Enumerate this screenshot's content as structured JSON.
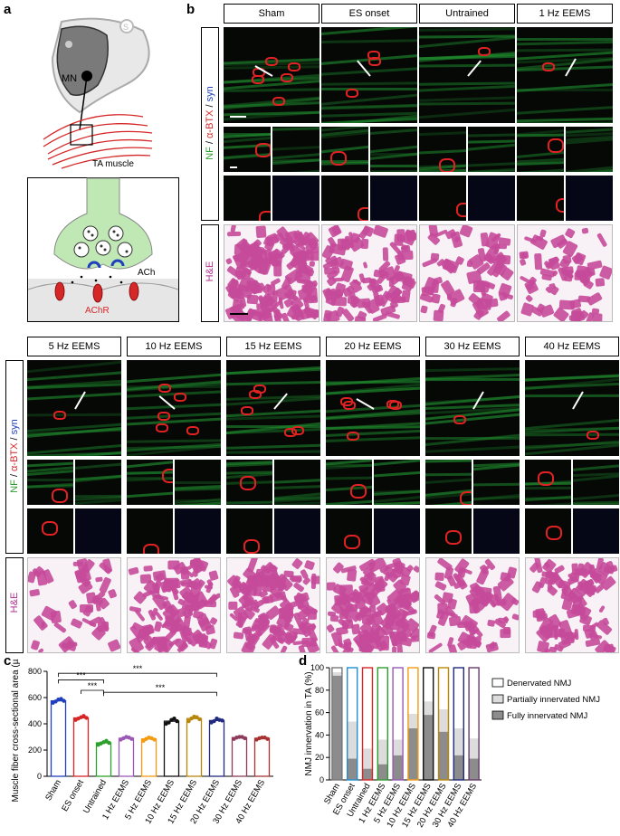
{
  "panels": {
    "a": "a",
    "b": "b",
    "c": "c",
    "d": "d"
  },
  "schematic": {
    "mn": "MN",
    "ta": "TA muscle",
    "ach": "ACh",
    "achr": "AChR",
    "s": "S"
  },
  "top_headers": [
    "Sham",
    "ES onset",
    "Untrained",
    "1 Hz EEMS"
  ],
  "bottom_headers": [
    "5 Hz EEMS",
    "10 Hz EEMS",
    "15 Hz EEMS",
    "20 Hz EEMS",
    "30 Hz EEMS",
    "40 Hz EEMS"
  ],
  "row_labels": {
    "nf": "NF",
    "sep1": " / ",
    "btx": "α-BTX",
    "sep2": " / ",
    "syn": "syn",
    "he": "H&E"
  },
  "colors": {
    "nf": "#2ca02c",
    "btx": "#d62728",
    "syn": "#1f3fbf",
    "he": "#b0308f"
  },
  "chart_data": [
    {
      "type": "scatter",
      "panel": "c",
      "ylabel": "Muscle fiber cross-sectional area (µm²)",
      "ylim": [
        0,
        800
      ],
      "yticks": [
        0,
        200,
        400,
        600,
        800
      ],
      "categories": [
        "Sham",
        "ES onset",
        "Untrained",
        "1 Hz EEMS",
        "5 Hz EEMS",
        "10 Hz EEMS",
        "15 Hz EEMS",
        "20 Hz EEMS",
        "30 Hz EEMS",
        "40 Hz EEMS"
      ],
      "means": [
        575,
        445,
        255,
        290,
        285,
        420,
        440,
        425,
        295,
        290
      ],
      "colors": [
        "#1f3fbf",
        "#d62728",
        "#2ca02c",
        "#9b59b6",
        "#f39c12",
        "#111111",
        "#b8860b",
        "#1f2a80",
        "#8e3a5a",
        "#a83232"
      ],
      "points": [
        [
          560,
          570,
          585,
          590,
          575
        ],
        [
          430,
          440,
          450,
          460,
          445
        ],
        [
          240,
          250,
          260,
          270,
          255
        ],
        [
          280,
          290,
          300,
          295,
          285
        ],
        [
          270,
          285,
          295,
          290,
          280
        ],
        [
          400,
          410,
          430,
          440,
          420
        ],
        [
          420,
          440,
          455,
          450,
          435
        ],
        [
          410,
          420,
          440,
          430,
          425
        ],
        [
          285,
          295,
          300,
          300,
          290
        ],
        [
          280,
          290,
          295,
          295,
          285
        ]
      ],
      "significance": [
        {
          "from": 0,
          "to": 2,
          "label": "***"
        },
        {
          "from": 1,
          "to": 2,
          "label": "***"
        },
        {
          "from": 0,
          "to": 7,
          "label": "***"
        },
        {
          "from": 2,
          "to": 7,
          "label": "***"
        }
      ]
    },
    {
      "type": "bar",
      "panel": "d",
      "stacked": true,
      "ylabel": "NMJ innervation in TA (%)",
      "ylim": [
        0,
        100
      ],
      "yticks": [
        0,
        20,
        40,
        60,
        80,
        100
      ],
      "categories": [
        "Sham",
        "ES onset",
        "Untrained",
        "1 Hz EEMS",
        "5 Hz EEMS",
        "10 Hz EEMS",
        "15 Hz EEMS",
        "20 Hz EEMS",
        "30 Hz EEMS",
        "40 Hz EEMS"
      ],
      "outline_colors": [
        "#777777",
        "#1f8fd6",
        "#d62728",
        "#2ca02c",
        "#9b59b6",
        "#f39c12",
        "#111111",
        "#b8860b",
        "#1f2a80",
        "#6a3a6a"
      ],
      "series": [
        {
          "name": "Fully innervated NMJ",
          "values": [
            93,
            19,
            10,
            14,
            22,
            46,
            58,
            43,
            22,
            19
          ]
        },
        {
          "name": "Partially innervated NMJ",
          "values": [
            3,
            33,
            18,
            22,
            14,
            13,
            12,
            20,
            24,
            18
          ]
        },
        {
          "name": "Denervated NMJ",
          "values": [
            4,
            48,
            72,
            64,
            64,
            41,
            30,
            37,
            54,
            63
          ]
        }
      ],
      "legend": [
        "Denervated NMJ",
        "Partially innervated NMJ",
        "Fully innervated NMJ"
      ]
    }
  ]
}
